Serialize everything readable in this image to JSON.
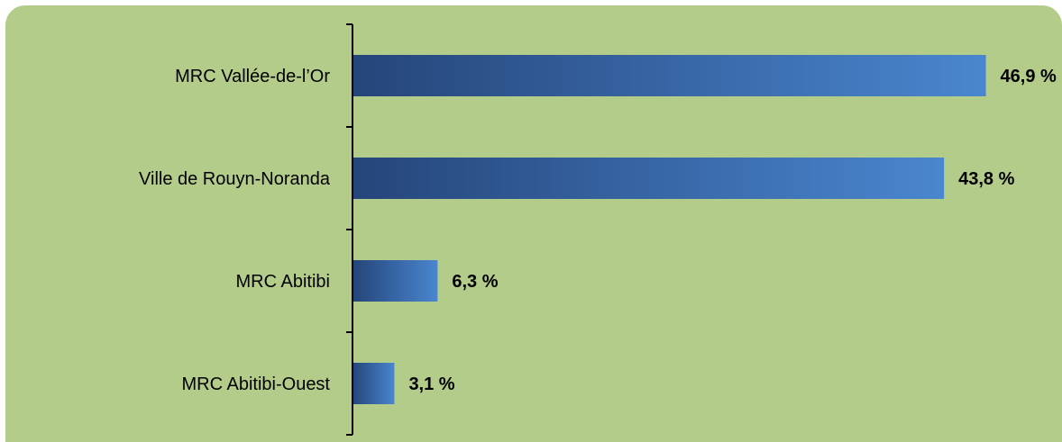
{
  "colors": {
    "background": "#b4cc8a",
    "bar_dark": "#25457a",
    "bar_light": "#4a86cf",
    "axis": "#000000"
  },
  "chart_data": {
    "type": "bar",
    "orientation": "horizontal",
    "categories": [
      "MRC Vallée-de-l’Or",
      "Ville de Rouyn-Noranda",
      "MRC Abitibi",
      "MRC Abitibi-Ouest"
    ],
    "values": [
      46.9,
      43.8,
      6.3,
      3.1
    ],
    "value_labels": [
      "46,9 %",
      "43,8 %",
      "6,3 %",
      "3,1 %"
    ],
    "unit": "%",
    "title": "",
    "xlabel": "",
    "ylabel": "",
    "xlim": [
      0,
      50
    ],
    "grid": false,
    "legend": "none"
  }
}
